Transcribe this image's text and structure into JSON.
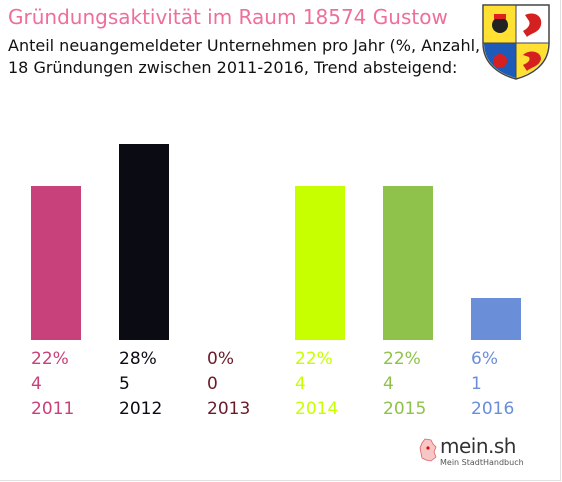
{
  "title": "Gründungsaktivität im Raum 18574 Gustow",
  "subtitle_line1": "Anteil neuangemeldeter Unternehmen pro Jahr (%, Anzahl, Jahr)",
  "subtitle_line2": "18 Gründungen zwischen 2011-2016, Trend absteigend:",
  "logo": {
    "name": "mein.sh",
    "tagline": "Mein StadtHandbuch"
  },
  "crest": {
    "icon": "mecklenburg-vorpommern-coat-of-arms-icon"
  },
  "colors": {
    "title": "#ee6e9c"
  },
  "chart_data": {
    "type": "bar",
    "categories": [
      "2011",
      "2012",
      "2013",
      "2014",
      "2015",
      "2016"
    ],
    "values": [
      22,
      28,
      0,
      22,
      22,
      6
    ],
    "percent_labels": [
      "22%",
      "28%",
      "0%",
      "22%",
      "22%",
      "6%"
    ],
    "counts": [
      4,
      5,
      0,
      4,
      4,
      1
    ],
    "colors": [
      "#c8417a",
      "#0b0b14",
      "#6b1a2a",
      "#c8ff00",
      "#8fc24a",
      "#6a8fd8"
    ],
    "ylim": [
      0,
      28
    ],
    "grid": false,
    "xlabel": "",
    "ylabel": ""
  }
}
